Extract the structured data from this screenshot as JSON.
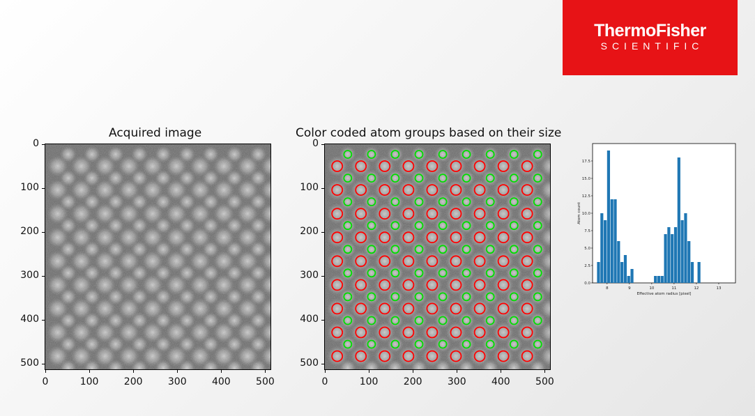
{
  "logo": {
    "brand": "ThermoFisher",
    "sub": "SCIENTIFIC",
    "bg_color": "#e71316"
  },
  "chart_data": [
    {
      "type": "image",
      "title": "Acquired image",
      "xlabel": "",
      "ylabel": "",
      "xlim": [
        0,
        512
      ],
      "ylim": [
        512,
        0
      ],
      "x_ticks": [
        "0",
        "100",
        "200",
        "300",
        "400",
        "500"
      ],
      "y_ticks": [
        "0",
        "100",
        "200",
        "300",
        "400",
        "500"
      ],
      "colormap": "gray"
    },
    {
      "type": "scatter",
      "title": "Color coded atom groups based on their size",
      "xlabel": "",
      "ylabel": "",
      "xlim": [
        0,
        512
      ],
      "ylim": [
        512,
        0
      ],
      "x_ticks": [
        "0",
        "100",
        "200",
        "300",
        "400",
        "500"
      ],
      "y_ticks": [
        "0",
        "100",
        "200",
        "300",
        "400",
        "500"
      ],
      "series": [
        {
          "color": "#ff0000",
          "lattice": {
            "x0": 28,
            "y0": 50,
            "dx": 54,
            "dy": 54,
            "row_shift": 0,
            "rows": 9,
            "cols": 9
          }
        },
        {
          "color": "#00dd00",
          "lattice": {
            "x0": 52,
            "y0": 23,
            "dx": 54,
            "dy": 54,
            "row_shift": -27,
            "rows": 10,
            "cols": 9
          }
        }
      ]
    },
    {
      "type": "bar",
      "title": "",
      "xlabel": "Effective atom radius [pixel]",
      "ylabel": "Atom count",
      "xlim": [
        7.35,
        13.75
      ],
      "ylim": [
        0,
        20
      ],
      "x_ticks": [
        "8",
        "9",
        "10",
        "11",
        "12",
        "13"
      ],
      "y_ticks": [
        "0.0",
        "2.5",
        "5.0",
        "7.5",
        "10.0",
        "12.5",
        "15.0",
        "17.5"
      ],
      "bin_start": 7.55,
      "bin_width": 0.15,
      "values": [
        3,
        10,
        9,
        19,
        12,
        12,
        6,
        3,
        4,
        1,
        2,
        0,
        0,
        0,
        0,
        0,
        0,
        1,
        1,
        1,
        7,
        8,
        7,
        8,
        18,
        9,
        10,
        6,
        3,
        0,
        3
      ],
      "bar_color": "#1f77b4"
    }
  ]
}
